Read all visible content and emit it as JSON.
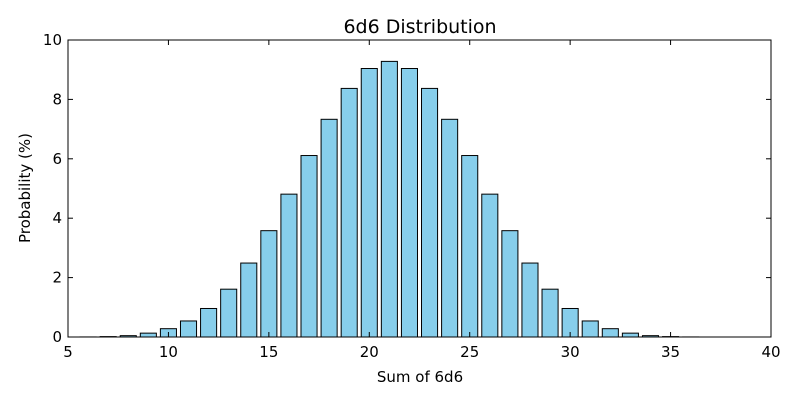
{
  "chart_data": {
    "type": "bar",
    "title": "6d6 Distribution",
    "xlabel": "Sum of 6d6",
    "ylabel": "Probability (%)",
    "xlim": [
      5,
      40
    ],
    "ylim": [
      0,
      10
    ],
    "xticks": [
      5,
      10,
      15,
      20,
      25,
      30,
      35,
      40
    ],
    "yticks": [
      0,
      2,
      4,
      6,
      8,
      10
    ],
    "grid": false,
    "bar_color": "#87ceeb",
    "edge_color": "#000000",
    "x": [
      6,
      7,
      8,
      9,
      10,
      11,
      12,
      13,
      14,
      15,
      16,
      17,
      18,
      19,
      20,
      21,
      22,
      23,
      24,
      25,
      26,
      27,
      28,
      29,
      30,
      31,
      32,
      33,
      34,
      35,
      36
    ],
    "values": [
      0.002,
      0.013,
      0.045,
      0.13,
      0.28,
      0.54,
      0.96,
      1.61,
      2.49,
      3.58,
      4.81,
      6.11,
      7.33,
      8.37,
      9.04,
      9.28,
      9.04,
      8.37,
      7.33,
      6.11,
      4.81,
      3.58,
      2.49,
      1.61,
      0.96,
      0.54,
      0.28,
      0.13,
      0.045,
      0.013,
      0.002
    ]
  }
}
